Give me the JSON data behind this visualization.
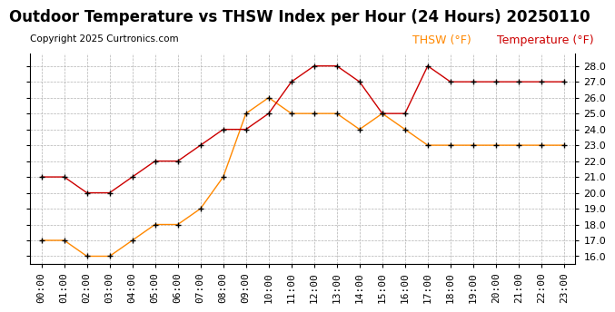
{
  "title": "Outdoor Temperature vs THSW Index per Hour (24 Hours) 20250110",
  "copyright": "Copyright 2025 Curtronics.com",
  "legend_thsw": "THSW (°F)",
  "legend_temp": "Temperature (°F)",
  "hours": [
    "00:00",
    "01:00",
    "02:00",
    "03:00",
    "04:00",
    "05:00",
    "06:00",
    "07:00",
    "08:00",
    "09:00",
    "10:00",
    "11:00",
    "12:00",
    "13:00",
    "14:00",
    "15:00",
    "16:00",
    "17:00",
    "18:00",
    "19:00",
    "20:00",
    "21:00",
    "22:00",
    "23:00"
  ],
  "temperature": [
    21.0,
    21.0,
    20.0,
    20.0,
    21.0,
    22.0,
    22.0,
    23.0,
    24.0,
    24.0,
    25.0,
    27.0,
    28.0,
    28.0,
    27.0,
    25.0,
    25.0,
    28.0,
    27.0,
    27.0,
    27.0,
    27.0,
    27.0,
    27.0
  ],
  "thsw": [
    17.0,
    17.0,
    16.0,
    16.0,
    17.0,
    18.0,
    18.0,
    19.0,
    21.0,
    25.0,
    26.0,
    25.0,
    25.0,
    25.0,
    24.0,
    25.0,
    24.0,
    23.0,
    23.0,
    23.0,
    23.0,
    23.0,
    23.0,
    23.0
  ],
  "temp_color": "#cc0000",
  "thsw_color": "#ff8800",
  "marker_color": "#000000",
  "ylim_min": 15.5,
  "ylim_max": 28.8,
  "yticks": [
    16.0,
    17.0,
    18.0,
    19.0,
    20.0,
    21.0,
    22.0,
    23.0,
    24.0,
    25.0,
    26.0,
    27.0,
    28.0
  ],
  "background_color": "#ffffff",
  "grid_color": "#aaaaaa",
  "title_fontsize": 12,
  "copyright_fontsize": 7.5,
  "legend_fontsize": 9,
  "tick_fontsize": 8
}
